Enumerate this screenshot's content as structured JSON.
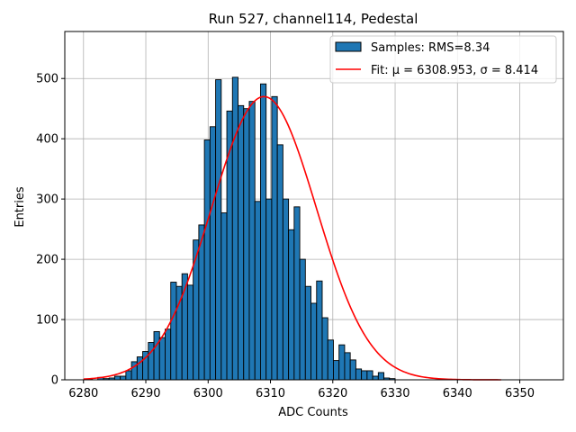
{
  "chart_data": {
    "type": "bar",
    "title": "Run 527, channel114, Pedestal",
    "xlabel": "ADC Counts",
    "ylabel": "Entries",
    "xlim": [
      6277,
      6357
    ],
    "ylim": [
      0,
      578
    ],
    "xticks": [
      6280,
      6290,
      6300,
      6310,
      6320,
      6330,
      6340,
      6350
    ],
    "yticks": [
      0,
      100,
      200,
      300,
      400,
      500
    ],
    "grid": true,
    "legend_position": "top-right",
    "histogram": {
      "name": "Samples: RMS=8.34",
      "color": "#1f77b4",
      "edgecolor": "#000000",
      "bin_width": 0.9,
      "x": [
        6280.5,
        6281.4,
        6282.3,
        6283.2,
        6284.1,
        6285.0,
        6285.9,
        6286.8,
        6287.7,
        6288.6,
        6289.5,
        6290.4,
        6291.3,
        6292.2,
        6293.1,
        6294.0,
        6294.9,
        6295.8,
        6296.7,
        6297.6,
        6298.5,
        6299.4,
        6300.3,
        6301.2,
        6302.1,
        6303.0,
        6303.9,
        6304.8,
        6305.7,
        6306.6,
        6307.5,
        6308.4,
        6309.3,
        6310.2,
        6311.1,
        6312.0,
        6312.9,
        6313.8,
        6314.7,
        6315.6,
        6316.5,
        6317.4,
        6318.3,
        6319.2,
        6320.1,
        6321.0,
        6321.9,
        6322.8,
        6323.7,
        6324.6,
        6325.5,
        6326.4,
        6327.3,
        6328.2,
        6329.1,
        6330.0,
        6330.9,
        6331.8,
        6332.7,
        6333.6,
        6334.5,
        6335.4,
        6336.3,
        6337.2
      ],
      "values": [
        1,
        0,
        4,
        2,
        3,
        6,
        6,
        15,
        30,
        38,
        47,
        62,
        80,
        70,
        84,
        162,
        155,
        176,
        157,
        232,
        257,
        398,
        420,
        498,
        277,
        446,
        502,
        455,
        450,
        462,
        296,
        491,
        300,
        470,
        390,
        300,
        249,
        287,
        200,
        155,
        127,
        164,
        103,
        66,
        32,
        58,
        45,
        33,
        18,
        15,
        15,
        6,
        12,
        3,
        2,
        0,
        0,
        0,
        0,
        0,
        0,
        0,
        0,
        0
      ]
    },
    "fit": {
      "name": "Fit: μ = 6308.953, σ = 8.414",
      "color": "#ff0000",
      "mu": 6308.953,
      "sigma": 8.414,
      "amplitude": 470,
      "x_range": [
        6280,
        6347
      ]
    }
  }
}
